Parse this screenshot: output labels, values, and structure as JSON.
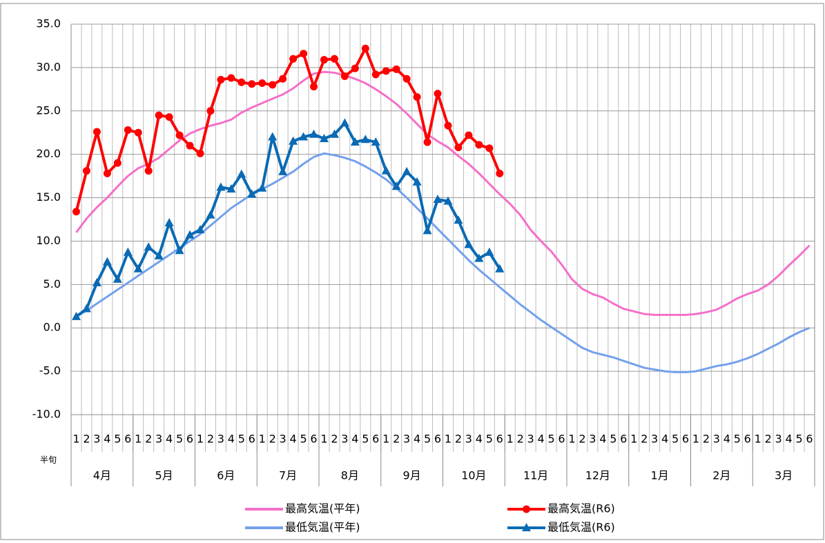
{
  "chart_data": {
    "type": "line",
    "categories": [
      "1",
      "2",
      "3",
      "4",
      "5",
      "6",
      "1",
      "2",
      "3",
      "4",
      "5",
      "6",
      "1",
      "2",
      "3",
      "4",
      "5",
      "6",
      "1",
      "2",
      "3",
      "4",
      "5",
      "6",
      "1",
      "2",
      "3",
      "4",
      "5",
      "6",
      "1",
      "2",
      "3",
      "4",
      "5",
      "6",
      "1",
      "2",
      "3",
      "4",
      "5",
      "6",
      "1",
      "2",
      "3",
      "4",
      "5",
      "6",
      "1",
      "2",
      "3",
      "4",
      "5",
      "6",
      "1",
      "2",
      "3",
      "4",
      "5",
      "6",
      "1",
      "2",
      "3",
      "4",
      "5",
      "6",
      "1",
      "2",
      "3",
      "4",
      "5",
      "6"
    ],
    "months": [
      "4月",
      "5月",
      "6月",
      "7月",
      "8月",
      "9月",
      "10月",
      "11月",
      "12月",
      "1月",
      "2月",
      "3月"
    ],
    "x_label": "半旬",
    "ylim": [
      -10,
      35
    ],
    "yticks": [
      {
        "value": -10,
        "label": "-10.0"
      },
      {
        "value": -5,
        "label": "-5.0"
      },
      {
        "value": 0,
        "label": "0.0"
      },
      {
        "value": 5,
        "label": "5.0"
      },
      {
        "value": 10,
        "label": "10.0"
      },
      {
        "value": 15,
        "label": "15.0"
      },
      {
        "value": 20,
        "label": "20.0"
      },
      {
        "value": 25,
        "label": "25.0"
      },
      {
        "value": 30,
        "label": "30.0"
      },
      {
        "value": 35,
        "label": "35.0"
      }
    ],
    "grid": true,
    "series": [
      {
        "name": "最高気温(平年)",
        "color": "#f56fc8",
        "marker": "none",
        "values": [
          11.0,
          12.6,
          13.9,
          15.0,
          16.3,
          17.5,
          18.4,
          18.9,
          19.6,
          20.6,
          21.6,
          22.4,
          22.9,
          23.3,
          23.6,
          24.0,
          24.8,
          25.4,
          25.9,
          26.4,
          26.9,
          27.6,
          28.5,
          29.3,
          29.5,
          29.4,
          29.1,
          28.7,
          28.2,
          27.5,
          26.7,
          25.8,
          24.7,
          23.5,
          22.3,
          21.5,
          20.8,
          19.8,
          18.9,
          17.8,
          16.6,
          15.4,
          14.3,
          13.0,
          11.3,
          10.0,
          8.8,
          7.3,
          5.6,
          4.5,
          3.9,
          3.5,
          2.8,
          2.2,
          1.9,
          1.6,
          1.5,
          1.5,
          1.5,
          1.5,
          1.6,
          1.8,
          2.1,
          2.7,
          3.4,
          3.9,
          4.3,
          5.0,
          6.0,
          7.2,
          8.3,
          9.5
        ]
      },
      {
        "name": "最高気温(R6)",
        "color": "#ff0000",
        "marker": "circle",
        "values": [
          13.4,
          18.1,
          22.6,
          17.8,
          19.0,
          22.8,
          22.5,
          18.1,
          24.5,
          24.3,
          22.2,
          21.0,
          20.1,
          25.0,
          28.6,
          28.8,
          28.3,
          28.1,
          28.2,
          28.0,
          28.7,
          31.0,
          31.6,
          27.8,
          30.9,
          31.0,
          29.0,
          29.9,
          32.2,
          29.2,
          29.6,
          29.8,
          28.7,
          26.6,
          21.4,
          27.0,
          23.3,
          20.8,
          22.2,
          21.1,
          20.7,
          17.8,
          null,
          null,
          null,
          null,
          null,
          null,
          null,
          null,
          null,
          null,
          null,
          null,
          null,
          null,
          null,
          null,
          null,
          null,
          null,
          null,
          null,
          null,
          null,
          null,
          null,
          null,
          null,
          null,
          null,
          null
        ]
      },
      {
        "name": "最低気温(平年)",
        "color": "#73a0ec",
        "marker": "none",
        "values": [
          1.3,
          2.0,
          2.8,
          3.6,
          4.4,
          5.2,
          6.0,
          6.8,
          7.6,
          8.4,
          9.2,
          10.0,
          10.8,
          11.8,
          12.8,
          13.8,
          14.6,
          15.4,
          16.0,
          16.6,
          17.3,
          18.0,
          18.9,
          19.7,
          20.1,
          19.9,
          19.6,
          19.2,
          18.6,
          17.9,
          17.1,
          16.1,
          15.0,
          13.8,
          12.6,
          11.4,
          10.2,
          9.0,
          7.8,
          6.7,
          5.7,
          4.7,
          3.7,
          2.7,
          1.8,
          0.9,
          0.1,
          -0.7,
          -1.5,
          -2.3,
          -2.8,
          -3.1,
          -3.4,
          -3.8,
          -4.2,
          -4.6,
          -4.8,
          -5.0,
          -5.1,
          -5.1,
          -5.0,
          -4.7,
          -4.4,
          -4.2,
          -3.9,
          -3.5,
          -3.0,
          -2.4,
          -1.8,
          -1.1,
          -0.5,
          0.0
        ]
      },
      {
        "name": "最低気温(R6)",
        "color": "#0a6ab4",
        "marker": "triangle",
        "values": [
          1.3,
          2.2,
          5.2,
          7.6,
          5.6,
          8.7,
          6.8,
          9.3,
          8.3,
          12.1,
          8.9,
          10.7,
          11.3,
          13.0,
          16.2,
          16.0,
          17.7,
          15.4,
          16.1,
          22.0,
          18.0,
          21.5,
          22.0,
          22.3,
          21.8,
          22.3,
          23.6,
          21.4,
          21.7,
          21.4,
          18.1,
          16.3,
          18.0,
          16.8,
          11.2,
          14.8,
          14.6,
          12.4,
          9.6,
          8.0,
          8.7,
          6.8,
          null,
          null,
          null,
          null,
          null,
          null,
          null,
          null,
          null,
          null,
          null,
          null,
          null,
          null,
          null,
          null,
          null,
          null,
          null,
          null,
          null,
          null,
          null,
          null,
          null,
          null,
          null,
          null,
          null,
          null
        ]
      }
    ]
  }
}
